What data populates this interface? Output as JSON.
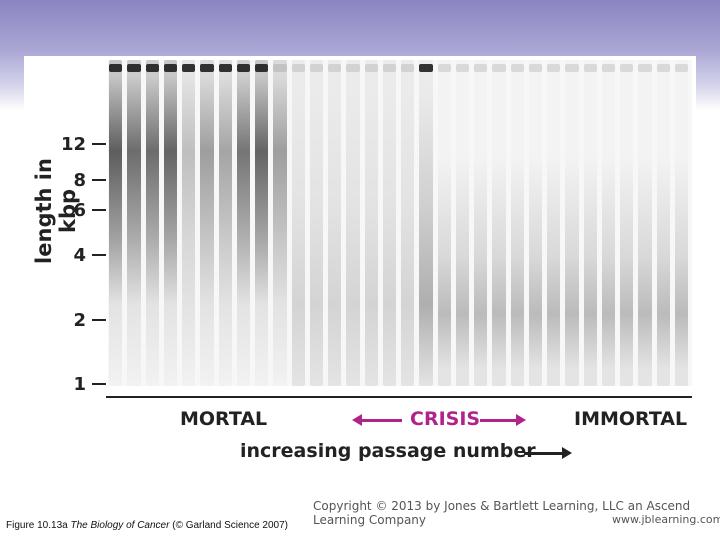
{
  "figure": {
    "y_axis_title": "length in kbp",
    "ticks": [
      {
        "label": "12",
        "kbp": 12
      },
      {
        "label": "8",
        "kbp": 8
      },
      {
        "label": "6",
        "kbp": 6
      },
      {
        "label": "4",
        "kbp": 4
      },
      {
        "label": "2",
        "kbp": 2
      },
      {
        "label": "1",
        "kbp": 1
      }
    ],
    "phases": {
      "mortal": "MORTAL",
      "crisis": "CRISIS",
      "immortal": "IMMORTAL"
    },
    "x_axis_title": "increasing passage number",
    "colors": {
      "crisis": "#b0238a",
      "text": "#222222"
    }
  },
  "copyright": "Copyright © 2013 by Jones & Bartlett Learning, LLC an Ascend Learning Company",
  "website": "www.jblearning.com",
  "caption": {
    "prefix": "Figure 10.13a",
    "book": "The Biology of Cancer",
    "suffix": "(© Garland Science 2007)"
  }
}
